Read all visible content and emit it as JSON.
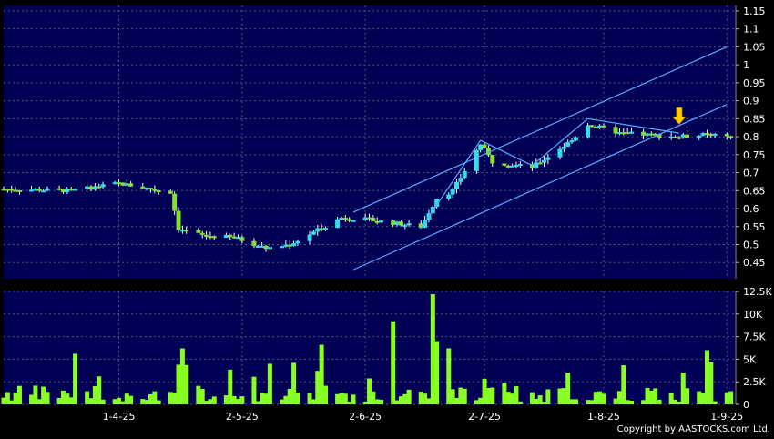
{
  "chart_data": [
    {
      "type": "candlestick",
      "panel": "price",
      "yticks": [
        0.45,
        0.5,
        0.55,
        0.6,
        0.65,
        0.7,
        0.75,
        0.8,
        0.85,
        0.9,
        0.95,
        1,
        1.05,
        1.1,
        1.15
      ],
      "ytick_labels": [
        "0.45",
        "0.5",
        "0.55",
        "0.6",
        "0.65",
        "0.7",
        "0.75",
        "0.8",
        "0.85",
        "0.9",
        "0.95",
        "1",
        "1.05",
        "1.1",
        "1.15"
      ],
      "ylim": [
        0.405,
        1.165
      ],
      "grid": true,
      "colors": {
        "background": "#000055",
        "up": "#33ddee",
        "down": "#88dd33",
        "wick": "#ffffff",
        "trend_line": "#55aaff",
        "grid": "#555577",
        "arrow": "#ffcc00"
      },
      "trend_lines": [
        {
          "from": [
            "2025-05-30",
            0.43
          ],
          "to": [
            "2025-09-01",
            0.89
          ]
        },
        {
          "from": [
            "2025-05-30",
            0.59
          ],
          "to": [
            "2025-09-01",
            1.05
          ]
        },
        {
          "from": [
            "2025-06-16",
            0.545
          ],
          "to": [
            "2025-07-01",
            0.79
          ]
        },
        {
          "from": [
            "2025-07-01",
            0.79
          ],
          "to": [
            "2025-07-14",
            0.72
          ]
        },
        {
          "from": [
            "2025-07-14",
            0.72
          ],
          "to": [
            "2025-07-28",
            0.85
          ]
        },
        {
          "from": [
            "2025-07-28",
            0.85
          ],
          "to": [
            "2025-08-20",
            0.81
          ]
        }
      ],
      "annotation": {
        "type": "down-arrow",
        "date": "2025-08-20",
        "price": 0.84
      }
    },
    {
      "type": "bar",
      "panel": "volume",
      "yticks": [
        0,
        2500,
        5000,
        7500,
        10000,
        12500
      ],
      "ytick_labels": [
        "0",
        "2.5K",
        "5K",
        "7.5K",
        "10K",
        "12.5K"
      ],
      "ylim": [
        0,
        12500
      ],
      "xticks": [
        "2025-04-01",
        "2025-05-02",
        "2025-06-02",
        "2025-07-02",
        "2025-08-01",
        "2025-09-01"
      ],
      "xtick_labels": [
        "1-4-25",
        "2-5-25",
        "2-6-25",
        "2-7-25",
        "1-8-25",
        "1-9-25"
      ],
      "bar_color": "#88ff22"
    }
  ],
  "copyright": "Copyright by AASTOCKS.com Ltd."
}
